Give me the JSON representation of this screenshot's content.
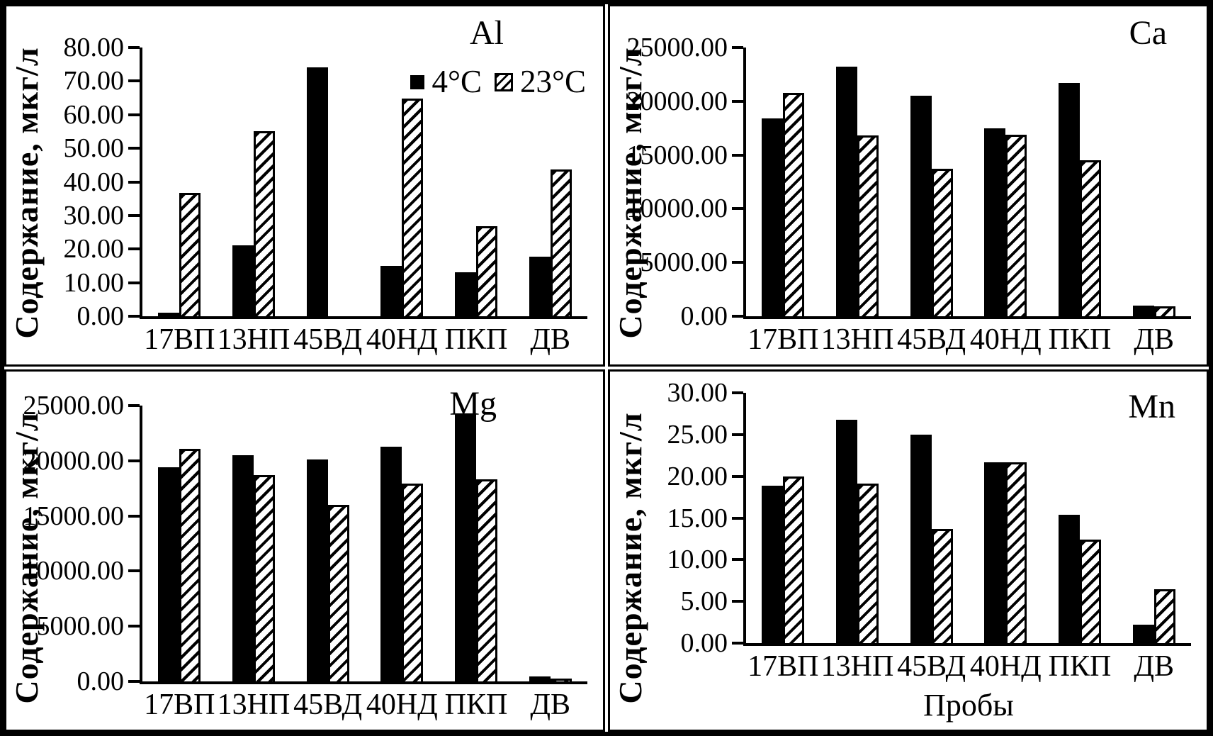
{
  "figure": {
    "ylabel": "Содержание, мкг/л",
    "xlabel": "Пробы",
    "colors": {
      "series1": "#000000",
      "series2_hatch": "#000000",
      "background": "#ffffff"
    }
  },
  "chart_data": [
    {
      "type": "bar",
      "title": "Al",
      "categories": [
        "17ВП",
        "13НП",
        "45ВД",
        "40НД",
        "ПКП",
        "ДВ"
      ],
      "series": [
        {
          "name": "4°C",
          "style": "solid-black",
          "values": [
            1.0,
            21.2,
            74.0,
            15.0,
            13.0,
            17.7
          ]
        },
        {
          "name": "23°C",
          "style": "diagonal-hatch",
          "values": [
            36.8,
            55.2,
            0,
            64.8,
            26.9,
            43.8
          ]
        }
      ],
      "ylabel": "Содержание, мкг/л",
      "xlabel": "",
      "ylim": [
        0,
        80
      ],
      "ytick_labels": [
        "0.00",
        "10.00",
        "20.00",
        "30.00",
        "40.00",
        "50.00",
        "60.00",
        "70.00",
        "80.00"
      ],
      "grid": false,
      "legend": true,
      "legend_position": "top-right"
    },
    {
      "type": "bar",
      "title": "Ca",
      "categories": [
        "17ВП",
        "13НП",
        "45ВД",
        "40НД",
        "ПКП",
        "ДВ"
      ],
      "series": [
        {
          "name": "4°C",
          "style": "solid-black",
          "values": [
            18400,
            23200,
            20500,
            17500,
            21700,
            1000
          ]
        },
        {
          "name": "23°C",
          "style": "diagonal-hatch",
          "values": [
            20800,
            16800,
            13700,
            16900,
            14500,
            950
          ]
        }
      ],
      "ylabel": "Содержание, мкг/л",
      "xlabel": "",
      "ylim": [
        0,
        25000
      ],
      "ytick_labels": [
        "0.00",
        "5000.00",
        "10000.00",
        "15000.00",
        "20000.00",
        "25000.00"
      ],
      "grid": false,
      "legend": false,
      "legend_position": ""
    },
    {
      "type": "bar",
      "title": "Mg",
      "categories": [
        "17ВП",
        "13НП",
        "45ВД",
        "40НД",
        "ПКП",
        "ДВ"
      ],
      "series": [
        {
          "name": "4°C",
          "style": "solid-black",
          "values": [
            19400,
            20500,
            20100,
            21300,
            24300,
            450
          ]
        },
        {
          "name": "23°C",
          "style": "diagonal-hatch",
          "values": [
            21100,
            18700,
            16000,
            17900,
            18300,
            250
          ]
        }
      ],
      "ylabel": "Содержание, мкг/л",
      "xlabel": "",
      "ylim": [
        0,
        25000
      ],
      "ytick_labels": [
        "0.00",
        "5000.00",
        "10000.00",
        "15000.00",
        "20000.00",
        "25000.00"
      ],
      "grid": false,
      "legend": false,
      "legend_position": ""
    },
    {
      "type": "bar",
      "title": "Mn",
      "categories": [
        "17ВП",
        "13НП",
        "45ВД",
        "40НД",
        "ПКП",
        "ДВ"
      ],
      "series": [
        {
          "name": "4°C",
          "style": "solid-black",
          "values": [
            18.9,
            26.8,
            25.0,
            21.7,
            15.4,
            2.2
          ]
        },
        {
          "name": "23°C",
          "style": "diagonal-hatch",
          "values": [
            20.0,
            19.1,
            13.7,
            21.7,
            12.4,
            6.5
          ]
        }
      ],
      "ylabel": "Содержание, мкг/л",
      "xlabel": "Пробы",
      "ylim": [
        0,
        30
      ],
      "ytick_labels": [
        "0.00",
        "5.00",
        "10.00",
        "15.00",
        "20.00",
        "25.00",
        "30.00"
      ],
      "grid": false,
      "legend": false,
      "legend_position": ""
    }
  ]
}
